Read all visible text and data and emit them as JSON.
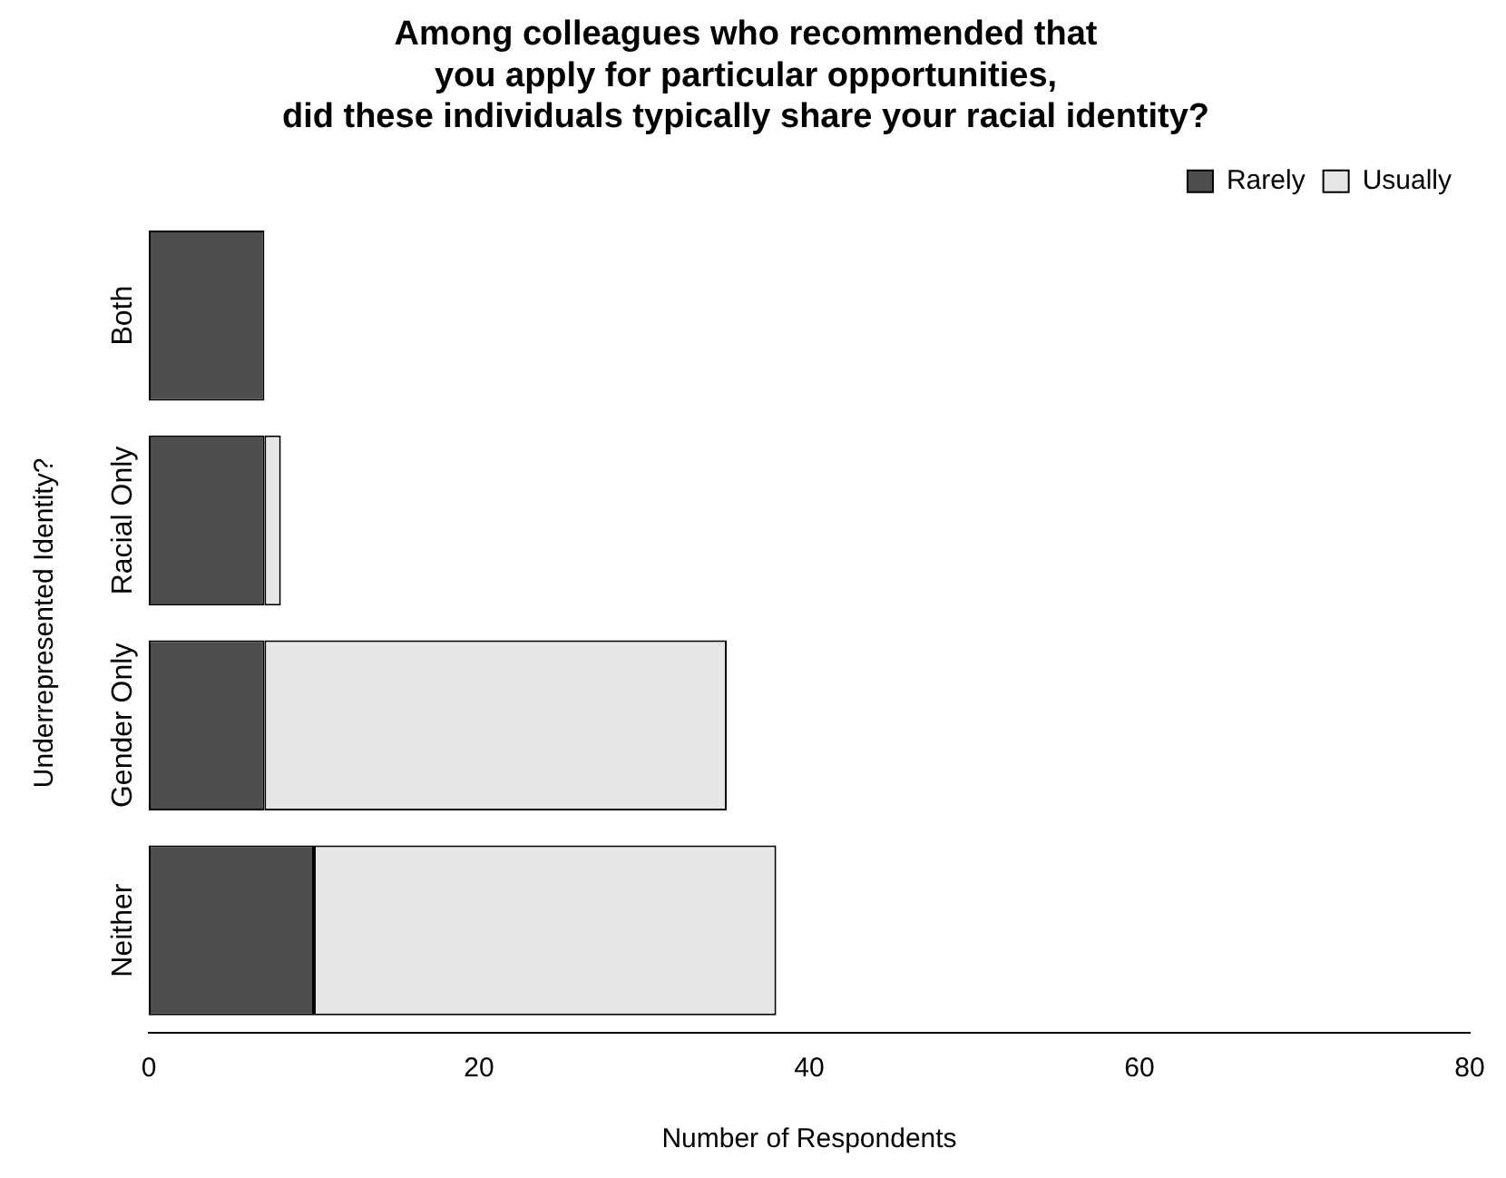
{
  "chart_data": {
    "type": "bar",
    "orientation": "horizontal",
    "stacked": true,
    "title": "Among colleagues who recommended that\nyou apply for particular opportunities,\ndid these individuals typically share your racial identity?",
    "xlabel": "Number of Respondents",
    "ylabel": "Underrepresented Identity?",
    "categories": [
      "Both",
      "Racial Only",
      "Gender Only",
      "Neither"
    ],
    "series": [
      {
        "name": "Rarely",
        "color": "#4d4d4d",
        "values": [
          7,
          7,
          7,
          10
        ]
      },
      {
        "name": "Usually",
        "color": "#e6e6e6",
        "values": [
          0,
          1,
          28,
          28
        ]
      }
    ],
    "xlim": [
      0,
      80
    ],
    "xticks": [
      0,
      20,
      40,
      60,
      80
    ],
    "legend": "top right"
  }
}
